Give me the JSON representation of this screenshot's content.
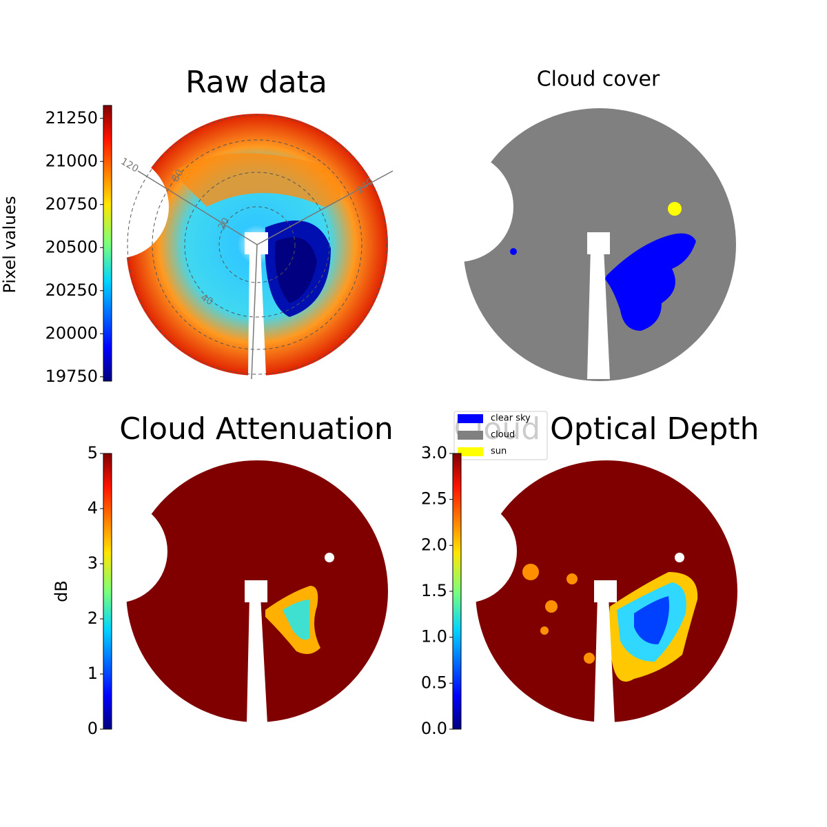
{
  "chart_data": [
    {
      "type": "heatmap",
      "title": "Raw data",
      "colorbar": {
        "label": "Pixel values",
        "lim": [
          19725,
          21325
        ],
        "ticks": [
          19750,
          20000,
          20250,
          20500,
          20750,
          21000,
          21250
        ]
      },
      "annotations": [
        "120",
        "80",
        "20",
        "40",
        "240"
      ]
    },
    {
      "type": "category",
      "title": "Cloud cover",
      "legend": [
        {
          "name": "clear sky",
          "color": "#0000ff"
        },
        {
          "name": "cloud",
          "color": "#808080"
        },
        {
          "name": "sun",
          "color": "#ffff00"
        }
      ]
    },
    {
      "type": "heatmap",
      "title": "Cloud Attenuation",
      "colorbar": {
        "label": "dB",
        "lim": [
          0,
          5
        ],
        "ticks": [
          0,
          1,
          2,
          3,
          4,
          5
        ]
      }
    },
    {
      "type": "heatmap",
      "title": "Cloud Optical Depth",
      "colorbar": {
        "lim": [
          0,
          3
        ],
        "ticks": [
          {
            "value": 0,
            "label": "0.0"
          },
          {
            "value": 0.5,
            "label": "0.5"
          },
          {
            "value": 1,
            "label": "1.0"
          },
          {
            "value": 1.5,
            "label": "1.5"
          },
          {
            "value": 2,
            "label": "2.0"
          },
          {
            "value": 2.5,
            "label": "2.5"
          },
          {
            "value": 3,
            "label": "3.0"
          }
        ]
      }
    }
  ]
}
